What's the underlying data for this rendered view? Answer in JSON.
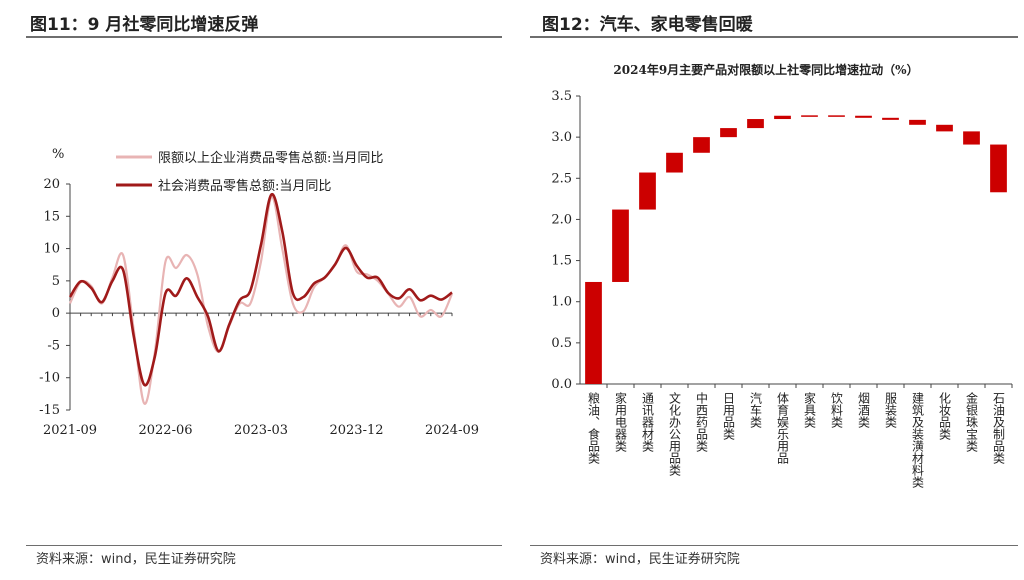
{
  "left": {
    "title": "图11：9 月社零同比增速反弹",
    "source": "资料来源：wind，民生证券研究院",
    "chart_data": {
      "type": "line",
      "title": "",
      "unit_label": "%",
      "ylim": [
        -15,
        20
      ],
      "yticks": [
        -15,
        -10,
        -5,
        0,
        5,
        10,
        15,
        20
      ],
      "x": [
        "2021-09",
        "2021-10",
        "2021-11",
        "2021-12",
        "2022-01",
        "2022-02",
        "2022-03",
        "2022-04",
        "2022-05",
        "2022-06",
        "2022-07",
        "2022-08",
        "2022-09",
        "2022-10",
        "2022-11",
        "2022-12",
        "2023-01",
        "2023-02",
        "2023-03",
        "2023-04",
        "2023-05",
        "2023-06",
        "2023-07",
        "2023-08",
        "2023-09",
        "2023-10",
        "2023-11",
        "2023-12",
        "2024-01",
        "2024-02",
        "2024-03",
        "2024-04",
        "2024-05",
        "2024-06",
        "2024-07",
        "2024-08",
        "2024-09"
      ],
      "xtick_labels": [
        "2021-09",
        "2022-06",
        "2023-03",
        "2023-12",
        "2024-09"
      ],
      "series": [
        {
          "name": "限额以上企业消费品零售总额:当月同比",
          "color": "#e8b4b4",
          "values": [
            1.5,
            4.8,
            4.2,
            1.5,
            5.5,
            9.0,
            -2.5,
            -14.0,
            -6.0,
            8.0,
            7.0,
            9.0,
            6.0,
            -2.0,
            -6.0,
            -2.0,
            1.5,
            1.5,
            8.0,
            18.0,
            10.0,
            1.5,
            0.3,
            4.0,
            5.5,
            7.5,
            10.5,
            6.5,
            6.0,
            5.0,
            3.0,
            1.0,
            2.5,
            -0.5,
            0.5,
            -0.5,
            3.0
          ]
        },
        {
          "name": "社会消费品零售总额:当月同比",
          "color": "#a01a1a",
          "values": [
            2.5,
            4.9,
            3.9,
            1.7,
            5.0,
            6.7,
            -3.5,
            -11.1,
            -6.7,
            3.1,
            2.7,
            5.4,
            2.5,
            -0.5,
            -5.9,
            -1.8,
            2.0,
            3.5,
            10.6,
            18.4,
            12.7,
            3.1,
            2.5,
            4.6,
            5.5,
            7.6,
            10.1,
            7.4,
            5.5,
            5.5,
            3.1,
            2.3,
            3.7,
            2.0,
            2.7,
            2.1,
            3.2
          ]
        }
      ]
    }
  },
  "right": {
    "title": "图12：汽车、家电零售回暖",
    "source": "资料来源：wind，民生证券研究院",
    "chart_data": {
      "type": "bar",
      "subtype": "waterfall",
      "title": "2024年9月主要产品对限额以上社零同比增速拉动（%）",
      "ylim": [
        0,
        3.5
      ],
      "yticks": [
        "0.0",
        "0.5",
        "1.0",
        "1.5",
        "2.0",
        "2.5",
        "3.0",
        "3.5"
      ],
      "color": "#cc0000",
      "categories": [
        "粮油、食品类",
        "家用电器类",
        "通讯器材类",
        "文化办公用品类",
        "中西药品类",
        "日用品类",
        "汽车类",
        "体育娱乐用品",
        "家具类",
        "饮料类",
        "烟酒类",
        "服装类",
        "建筑及装潢材料类",
        "化妆品类",
        "金银珠宝类",
        "石油及制品类"
      ],
      "bars": [
        {
          "start": 0.0,
          "end": 1.24
        },
        {
          "start": 1.24,
          "end": 2.12
        },
        {
          "start": 2.12,
          "end": 2.57
        },
        {
          "start": 2.57,
          "end": 2.81
        },
        {
          "start": 2.81,
          "end": 3.0
        },
        {
          "start": 3.0,
          "end": 3.11
        },
        {
          "start": 3.11,
          "end": 3.22
        },
        {
          "start": 3.22,
          "end": 3.26
        },
        {
          "start": 3.26,
          "end": 3.265
        },
        {
          "start": 3.265,
          "end": 3.26
        },
        {
          "start": 3.26,
          "end": 3.235
        },
        {
          "start": 3.235,
          "end": 3.21
        },
        {
          "start": 3.21,
          "end": 3.15
        },
        {
          "start": 3.15,
          "end": 3.07
        },
        {
          "start": 3.07,
          "end": 2.91
        },
        {
          "start": 2.91,
          "end": 2.33
        }
      ]
    }
  }
}
